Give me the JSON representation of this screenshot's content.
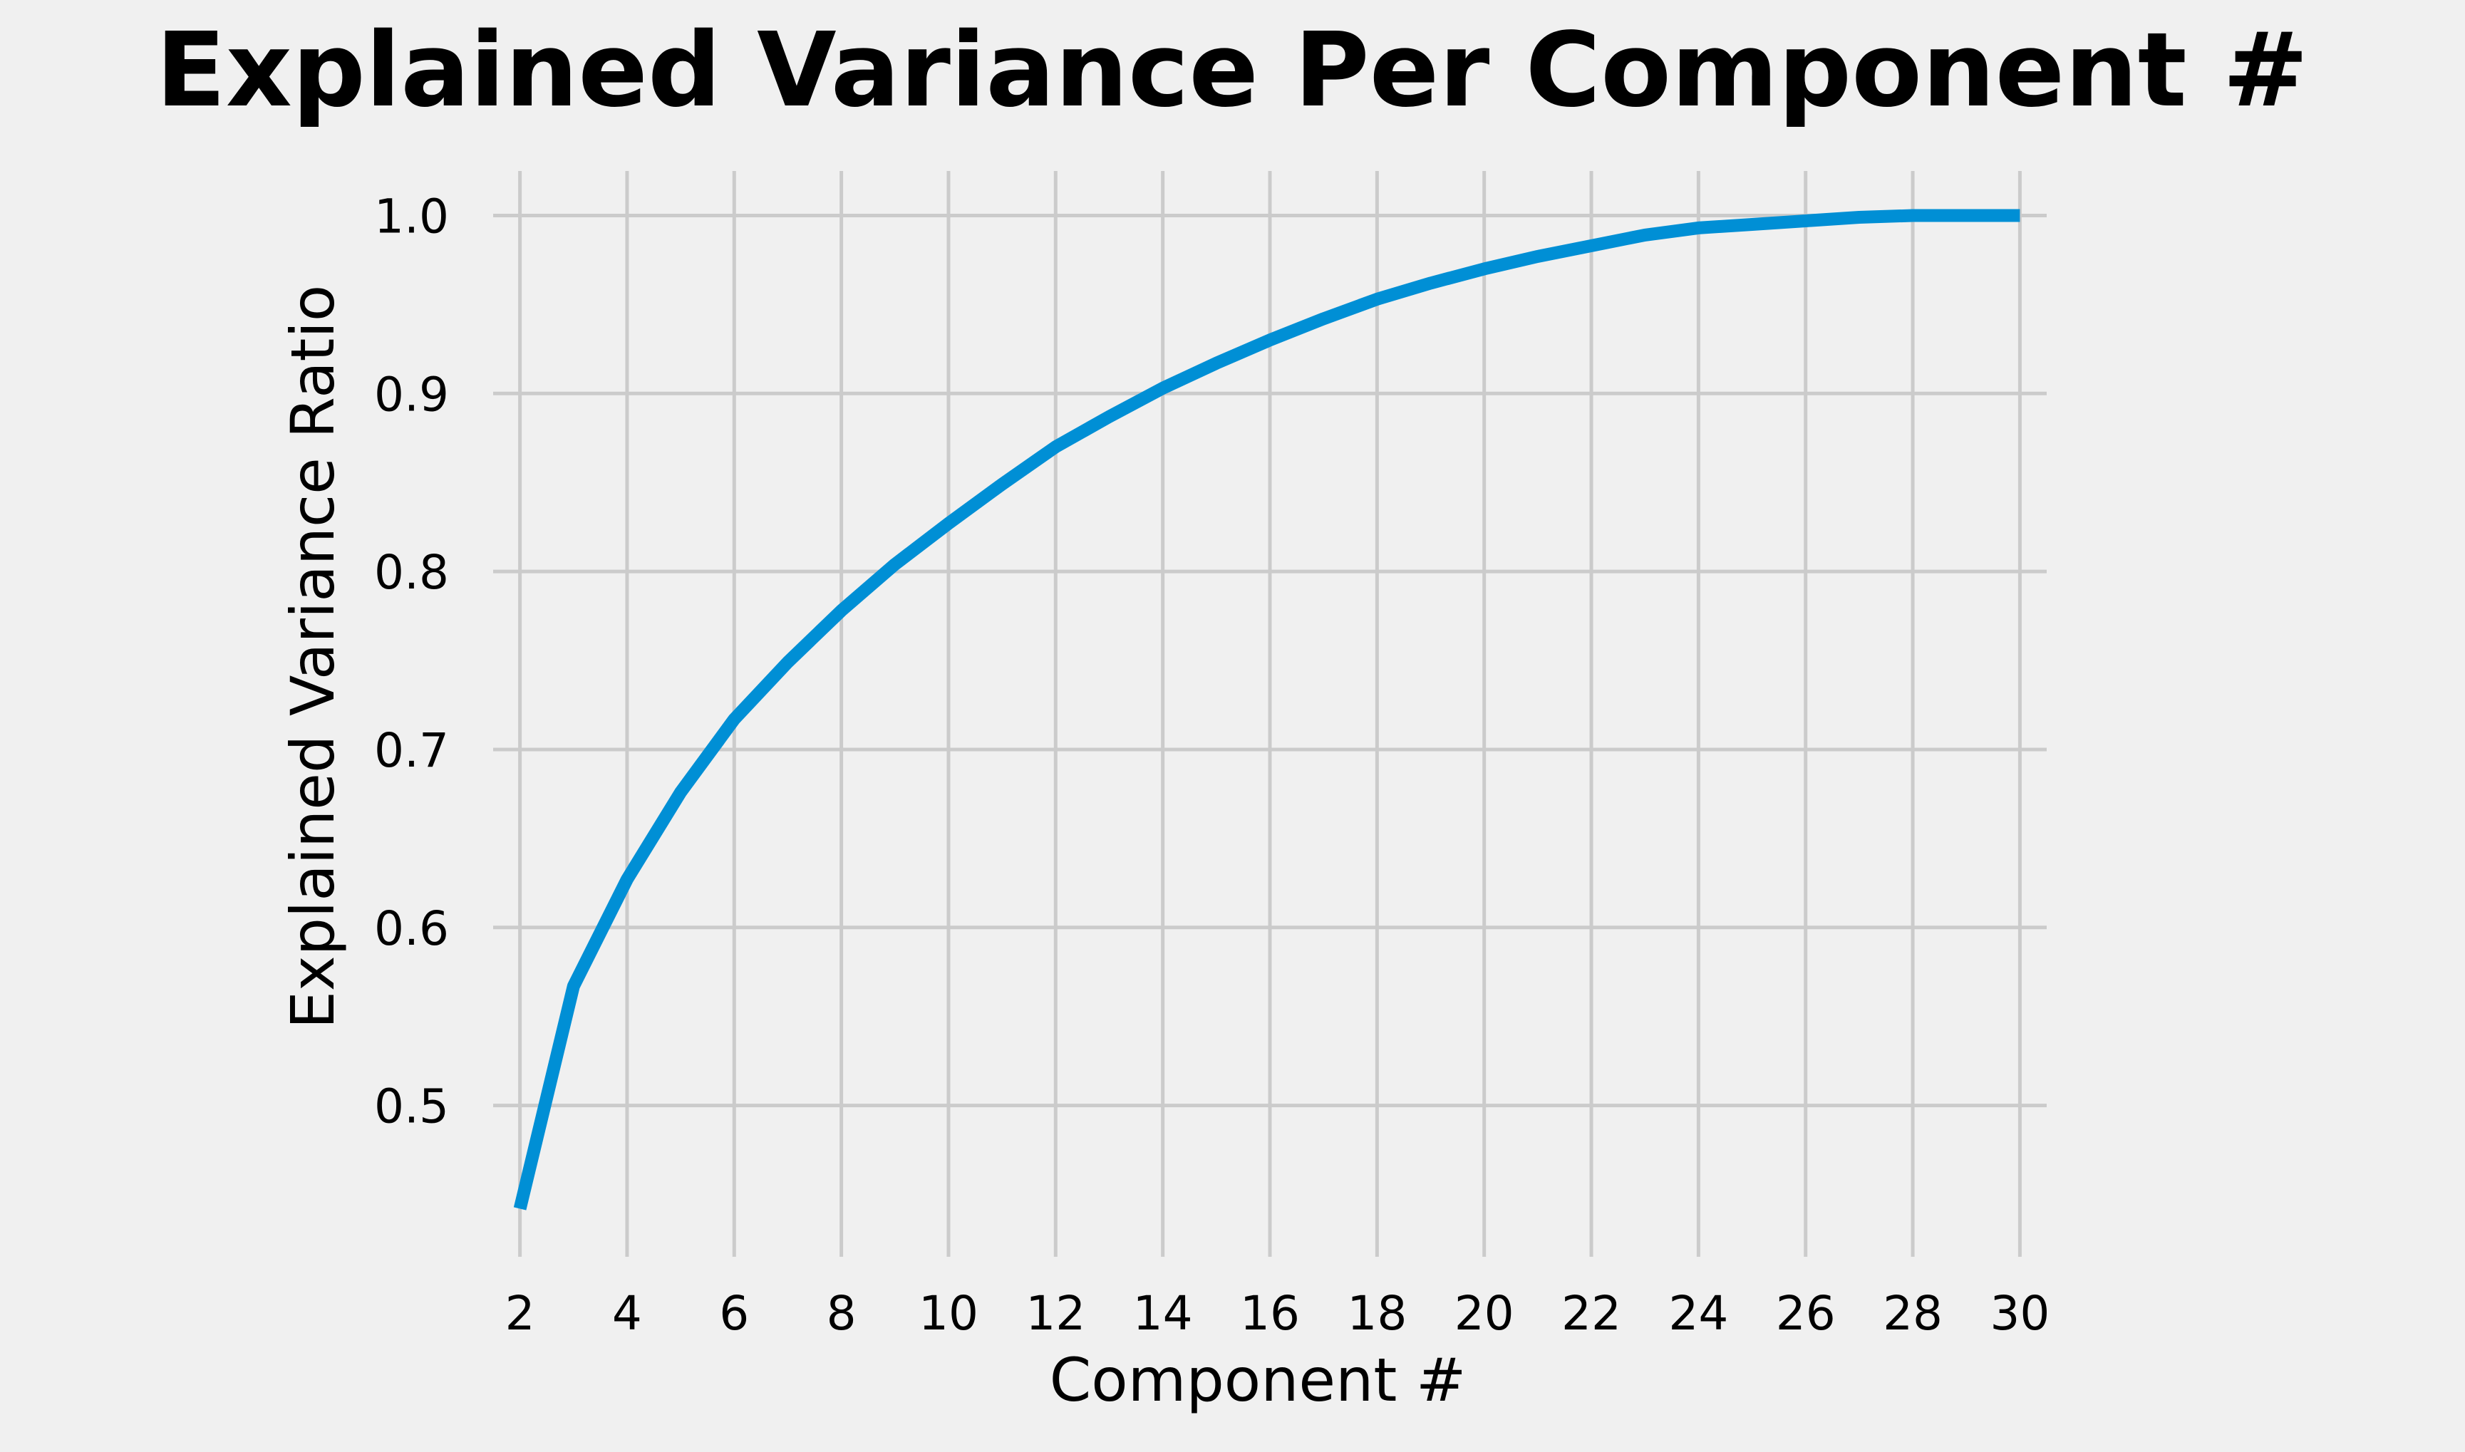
{
  "chart_data": {
    "type": "line",
    "title": "Explained Variance Per Component #",
    "xlabel": "Component #",
    "ylabel": "Explained Variance Ratio",
    "xlim": [
      1.5,
      30.5
    ],
    "ylim": [
      0.415,
      1.025
    ],
    "xticks": [
      2,
      4,
      6,
      8,
      10,
      12,
      14,
      16,
      18,
      20,
      22,
      24,
      26,
      28,
      30
    ],
    "xtick_labels": [
      "2",
      "4",
      "6",
      "8",
      "10",
      "12",
      "14",
      "16",
      "18",
      "20",
      "22",
      "24",
      "26",
      "28",
      "30"
    ],
    "yticks": [
      0.5,
      0.6,
      0.7,
      0.8,
      0.9,
      1.0
    ],
    "ytick_labels": [
      "0.5",
      "0.6",
      "0.7",
      "0.8",
      "0.9",
      "1.0"
    ],
    "grid": true,
    "colors": {
      "line": "#008fd5",
      "grid": "#cbcbcb",
      "background": "#f0f0f0",
      "text": "#000000"
    },
    "series": [
      {
        "x": [
          2,
          3,
          4,
          5,
          6,
          7,
          8,
          9,
          10,
          11,
          12,
          13,
          14,
          15,
          16,
          17,
          18,
          19,
          20,
          21,
          22,
          23,
          24,
          25,
          26,
          27,
          28,
          29,
          30
        ],
        "values": [
          0.442,
          0.567,
          0.627,
          0.676,
          0.717,
          0.749,
          0.778,
          0.804,
          0.827,
          0.849,
          0.87,
          0.887,
          0.903,
          0.917,
          0.93,
          0.942,
          0.953,
          0.962,
          0.97,
          0.977,
          0.983,
          0.989,
          0.993,
          0.995,
          0.997,
          0.999,
          1.0,
          1.0,
          1.0
        ]
      }
    ]
  }
}
